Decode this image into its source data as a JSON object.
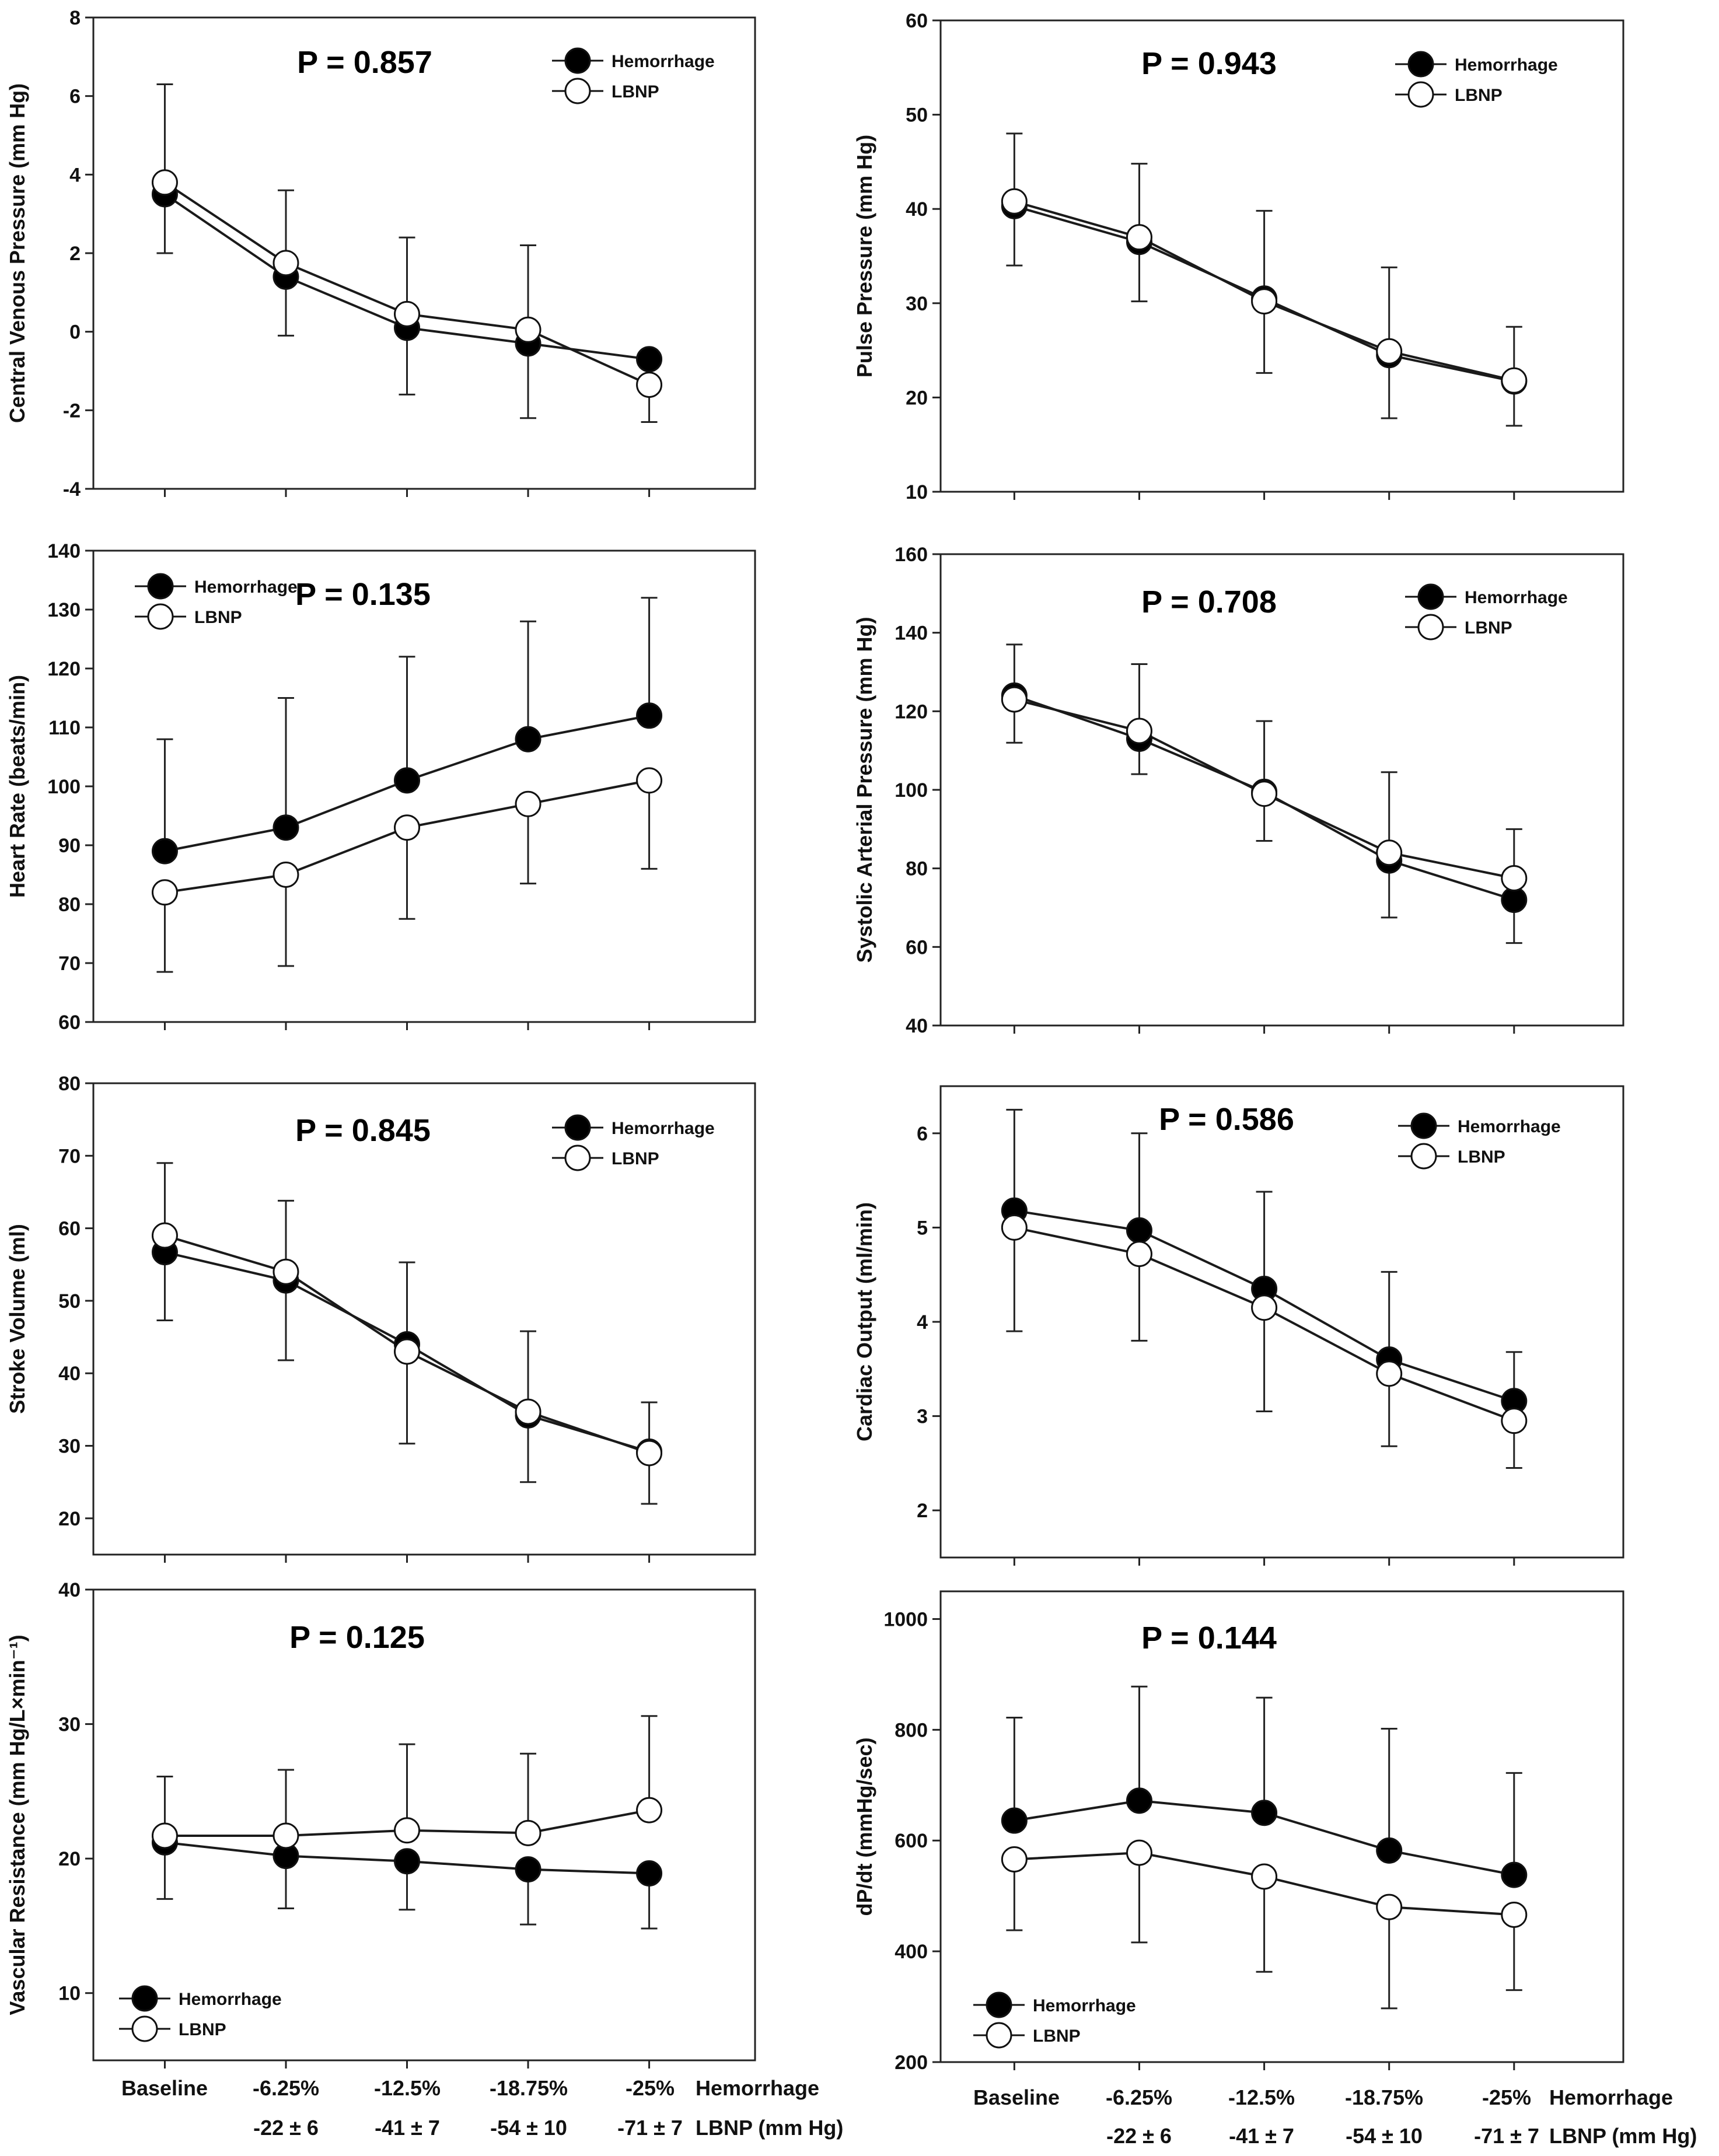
{
  "x_axis": {
    "hemorrhage_labels": [
      "Baseline",
      "-6.25%",
      "-12.5%",
      "-18.75%",
      "-25%"
    ],
    "lbnp_labels": [
      "",
      "-22 ± 6",
      "-41 ± 7",
      "-54 ± 10",
      "-71 ± 7"
    ],
    "hemorrhage_title": "Hemorrhage",
    "lbnp_title": "LBNP (mm Hg)"
  },
  "legend_labels": [
    "Hemorrhage",
    "LBNP"
  ],
  "colors": {
    "hemorrhage_fill": "#000000",
    "lbnp_fill": "#ffffff",
    "line": "#1a1a1a"
  },
  "chart_data": [
    {
      "type": "line",
      "title": "",
      "ylabel": "Central Venous Pressure (mm Hg)",
      "ylim": [
        -4,
        8
      ],
      "yticks": [
        -4,
        -2,
        0,
        2,
        4,
        6,
        8
      ],
      "p_value": "P = 0.857",
      "legend_position": "top-right",
      "categories": [
        "Baseline",
        "-6.25%",
        "-12.5%",
        "-18.75%",
        "-25%"
      ],
      "series": [
        {
          "name": "Hemorrhage",
          "values": [
            3.5,
            1.4,
            0.1,
            -0.3,
            -0.7
          ]
        },
        {
          "name": "LBNP",
          "values": [
            3.8,
            1.75,
            0.45,
            0.05,
            -1.35
          ],
          "error_upper": [
            6.3,
            3.6,
            2.4,
            2.2,
            -0.7
          ],
          "error_lower": [
            2.0,
            -0.1,
            -1.6,
            -2.2,
            -2.3
          ]
        }
      ]
    },
    {
      "type": "line",
      "title": "",
      "ylabel": "Pulse Pressure (mm Hg)",
      "ylim": [
        10,
        60
      ],
      "yticks": [
        10,
        20,
        30,
        40,
        50,
        60
      ],
      "p_value": "P = 0.943",
      "legend_position": "top-right",
      "categories": [
        "Baseline",
        "-6.25%",
        "-12.5%",
        "-18.75%",
        "-25%"
      ],
      "series": [
        {
          "name": "Hemorrhage",
          "values": [
            40.3,
            36.5,
            30.5,
            24.5,
            21.7
          ]
        },
        {
          "name": "LBNP",
          "values": [
            40.8,
            37.0,
            30.2,
            24.9,
            21.8
          ],
          "error_upper": [
            48.0,
            44.8,
            39.8,
            33.8,
            27.5
          ],
          "error_lower": [
            34.0,
            30.2,
            22.6,
            17.8,
            17.0
          ]
        }
      ]
    },
    {
      "type": "line",
      "title": "",
      "ylabel": "Heart Rate (beats/min)",
      "ylim": [
        60,
        140
      ],
      "yticks": [
        60,
        70,
        80,
        90,
        100,
        110,
        120,
        130,
        140
      ],
      "p_value": "P = 0.135",
      "legend_position": "top-left",
      "categories": [
        "Baseline",
        "-6.25%",
        "-12.5%",
        "-18.75%",
        "-25%"
      ],
      "series": [
        {
          "name": "Hemorrhage",
          "values": [
            89,
            93,
            101,
            108,
            112
          ],
          "error_upper": [
            108,
            115,
            122,
            128,
            132
          ]
        },
        {
          "name": "LBNP",
          "values": [
            82,
            85,
            93,
            97,
            101
          ],
          "error_lower": [
            68.5,
            69.5,
            77.5,
            83.5,
            86
          ]
        }
      ]
    },
    {
      "type": "line",
      "title": "",
      "ylabel": "Systolic Arterial Pressure (mm Hg)",
      "ylim": [
        40,
        160
      ],
      "yticks": [
        40,
        60,
        80,
        100,
        120,
        140,
        160
      ],
      "p_value": "P = 0.708",
      "legend_position": "top-right",
      "categories": [
        "Baseline",
        "-6.25%",
        "-12.5%",
        "-18.75%",
        "-25%"
      ],
      "series": [
        {
          "name": "Hemorrhage",
          "values": [
            124,
            113,
            99.5,
            82,
            72
          ]
        },
        {
          "name": "LBNP",
          "values": [
            123,
            115,
            99,
            84,
            77.5
          ],
          "error_upper": [
            137,
            132,
            117.5,
            104.5,
            90
          ],
          "error_lower": [
            112,
            104,
            87,
            67.5,
            61
          ]
        }
      ]
    },
    {
      "type": "line",
      "title": "",
      "ylabel": "Stroke Volume (ml)",
      "ylim": [
        15,
        80
      ],
      "yticks": [
        20,
        30,
        40,
        50,
        60,
        70,
        80
      ],
      "p_value": "P = 0.845",
      "legend_position": "top-right",
      "categories": [
        "Baseline",
        "-6.25%",
        "-12.5%",
        "-18.75%",
        "-25%"
      ],
      "series": [
        {
          "name": "Hemorrhage",
          "values": [
            56.7,
            52.8,
            44,
            34.2,
            29.2
          ]
        },
        {
          "name": "LBNP",
          "values": [
            59,
            54,
            43,
            34.7,
            29
          ],
          "error_upper": [
            69,
            63.8,
            55.3,
            45.8,
            36
          ],
          "error_lower": [
            47.3,
            41.8,
            30.3,
            25,
            22
          ]
        }
      ]
    },
    {
      "type": "line",
      "title": "",
      "ylabel": "Cardiac Output (ml/min)",
      "ylim": [
        1.5,
        6.5
      ],
      "yticks": [
        2,
        3,
        4,
        5,
        6
      ],
      "p_value": "P = 0.586",
      "legend_position": "top-right",
      "categories": [
        "Baseline",
        "-6.25%",
        "-12.5%",
        "-18.75%",
        "-25%"
      ],
      "series": [
        {
          "name": "Hemorrhage",
          "values": [
            5.18,
            4.97,
            4.35,
            3.6,
            3.16
          ],
          "error_upper": [
            6.25,
            6.0,
            5.38,
            4.53,
            3.68
          ]
        },
        {
          "name": "LBNP",
          "values": [
            5.0,
            4.72,
            4.15,
            3.45,
            2.95
          ],
          "error_lower": [
            3.9,
            3.8,
            3.05,
            2.68,
            2.45
          ]
        }
      ]
    },
    {
      "type": "line",
      "title": "",
      "ylabel": "Vascular Resistance (mm Hg/L×min⁻¹)",
      "ylim": [
        5,
        40
      ],
      "yticks": [
        10,
        20,
        30,
        40
      ],
      "p_value": "P = 0.125",
      "legend_position": "bottom-left",
      "categories": [
        "Baseline",
        "-6.25%",
        "-12.5%",
        "-18.75%",
        "-25%"
      ],
      "series": [
        {
          "name": "Hemorrhage",
          "values": [
            21.2,
            20.2,
            19.8,
            19.2,
            18.9
          ],
          "error_lower": [
            17,
            16.3,
            16.2,
            15.1,
            14.8
          ]
        },
        {
          "name": "LBNP",
          "values": [
            21.7,
            21.7,
            22.1,
            21.9,
            23.6
          ],
          "error_upper": [
            26.1,
            26.6,
            28.5,
            27.8,
            30.6
          ]
        }
      ]
    },
    {
      "type": "line",
      "title": "",
      "ylabel": "dP/dt (mmHg/sec)",
      "ylim": [
        200,
        1050
      ],
      "yticks": [
        200,
        400,
        600,
        800,
        1000
      ],
      "p_value": "P = 0.144",
      "legend_position": "bottom-left",
      "categories": [
        "Baseline",
        "-6.25%",
        "-12.5%",
        "-18.75%",
        "-25%"
      ],
      "series": [
        {
          "name": "Hemorrhage",
          "values": [
            636,
            672,
            650,
            582,
            538
          ],
          "error_upper": [
            822,
            878,
            858,
            802,
            722
          ]
        },
        {
          "name": "LBNP",
          "values": [
            566,
            578,
            535,
            480,
            466
          ],
          "error_lower": [
            438,
            416,
            363,
            297,
            330
          ]
        }
      ]
    }
  ]
}
